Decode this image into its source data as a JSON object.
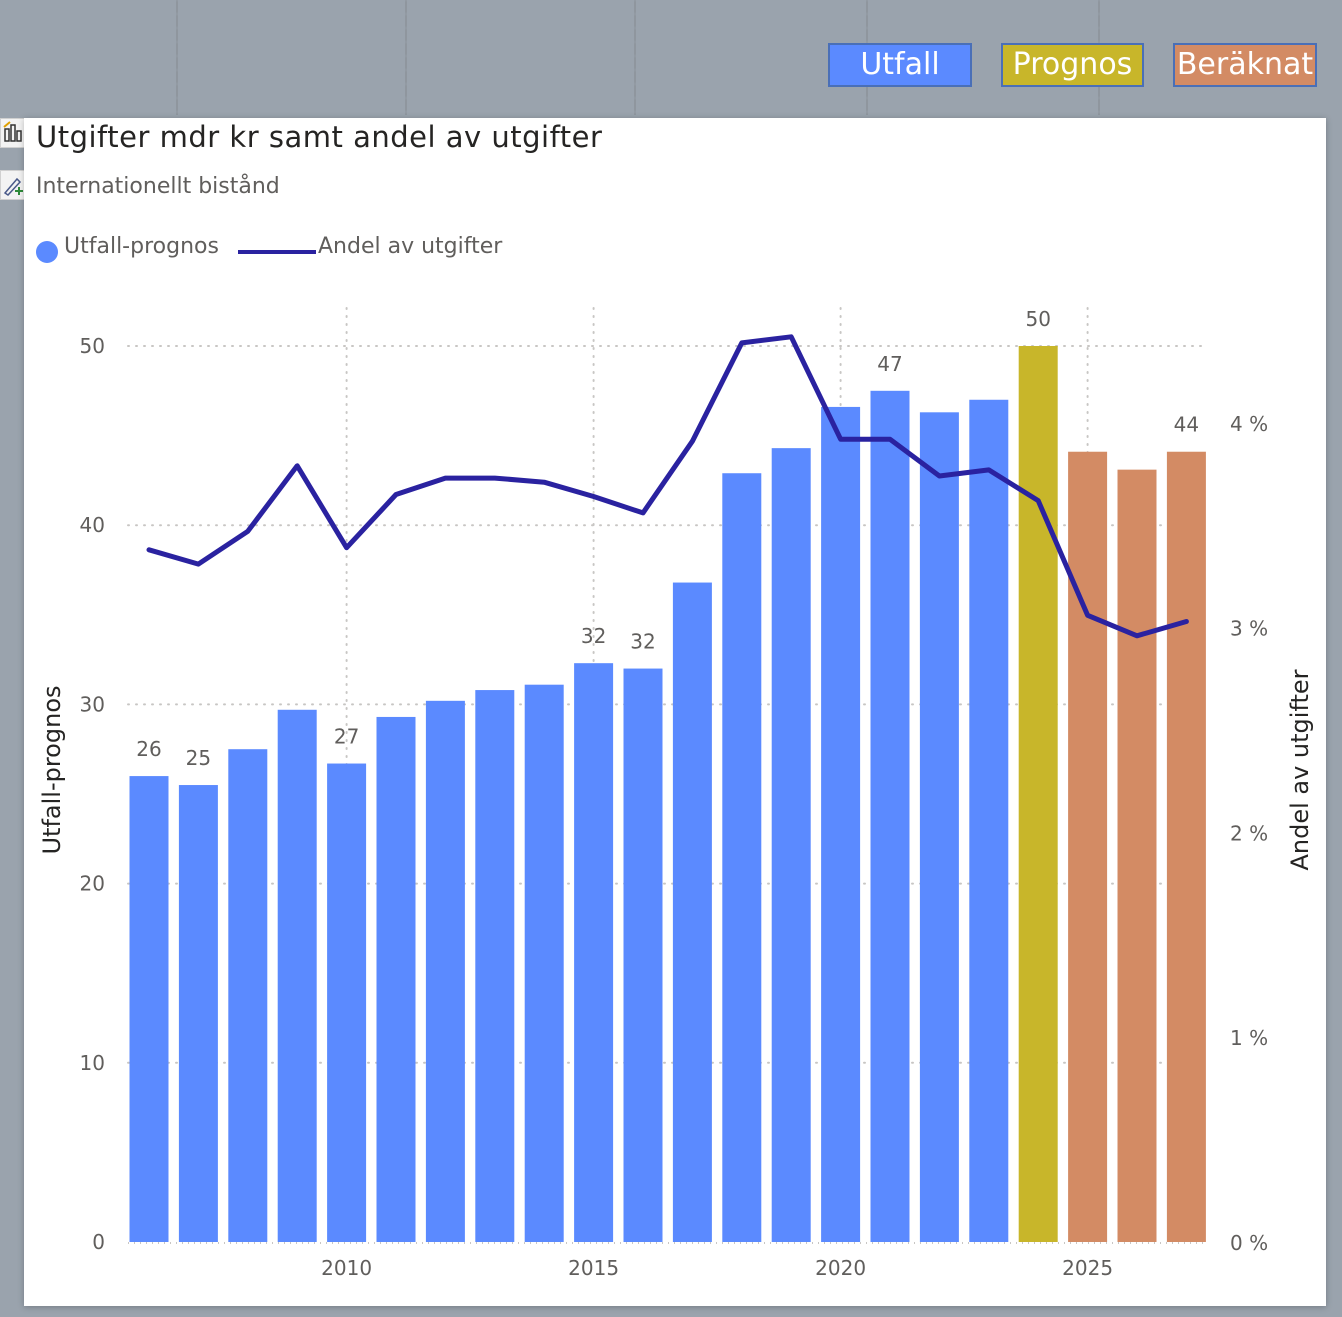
{
  "legend_buttons": [
    {
      "label": "Utfall",
      "color": "#5b8aff"
    },
    {
      "label": "Prognos",
      "color": "#c8b62a"
    },
    {
      "label": "Beräknat",
      "color": "#d38b64"
    }
  ],
  "visual": {
    "title": "Utgifter mdr kr samt andel av utgifter",
    "subtitle": "Internationellt bistånd",
    "legend": [
      {
        "label": "Utfall-prognos",
        "marker": "dot",
        "color": "#5b8aff"
      },
      {
        "label": "Andel av utgifter",
        "marker": "line",
        "color": "#2a22a0"
      }
    ],
    "icons": [
      "chart-icon",
      "edit-icon"
    ]
  },
  "chart_data": {
    "type": "bar",
    "categories": [
      2006,
      2007,
      2008,
      2009,
      2010,
      2011,
      2012,
      2013,
      2014,
      2015,
      2016,
      2017,
      2018,
      2019,
      2020,
      2021,
      2022,
      2023,
      2024,
      2025,
      2026,
      2027
    ],
    "values": [
      26.0,
      25.5,
      27.5,
      29.7,
      26.7,
      29.3,
      30.2,
      30.8,
      31.1,
      32.3,
      32.0,
      36.8,
      42.9,
      44.3,
      46.6,
      47.5,
      46.3,
      47.0,
      50.0,
      44.1,
      43.1,
      44.1
    ],
    "bar_phase": [
      "Utfall",
      "Utfall",
      "Utfall",
      "Utfall",
      "Utfall",
      "Utfall",
      "Utfall",
      "Utfall",
      "Utfall",
      "Utfall",
      "Utfall",
      "Utfall",
      "Utfall",
      "Utfall",
      "Utfall",
      "Utfall",
      "Utfall",
      "Utfall",
      "Prognos",
      "Beräknat",
      "Beräknat",
      "Beräknat"
    ],
    "phase_colors": {
      "Utfall": "#5b8aff",
      "Prognos": "#c8b62a",
      "Beräknat": "#d38b64"
    },
    "data_labels": {
      "2006": "26",
      "2007": "25",
      "2010": "27",
      "2015": "32",
      "2016": "32",
      "2021": "47",
      "2024": "50",
      "2027": "44"
    },
    "line_series": {
      "name": "Andel av utgifter",
      "color": "#2a22a0",
      "values": [
        3.38,
        3.31,
        3.47,
        3.79,
        3.39,
        3.65,
        3.73,
        3.73,
        3.71,
        3.64,
        3.56,
        3.91,
        4.39,
        4.42,
        3.92,
        3.92,
        3.74,
        3.77,
        3.62,
        3.06,
        2.96,
        3.03
      ]
    },
    "xlabel": "",
    "ylabel": "Utfall-prognos",
    "y2label": "Andel av utgifter",
    "ylim": [
      0,
      50
    ],
    "y2lim": [
      0,
      4.375
    ],
    "yticks": [
      "0",
      "10",
      "20",
      "30",
      "40",
      "50"
    ],
    "yticks_values": [
      0,
      10,
      20,
      30,
      40,
      50
    ],
    "y2ticks": [
      "0 %",
      "1 %",
      "2 %",
      "3 %",
      "4 %"
    ],
    "y2ticks_values": [
      0,
      1,
      2,
      3,
      4
    ],
    "xticks": [
      "2010",
      "2015",
      "2020",
      "2025"
    ],
    "xticks_values": [
      2010,
      2015,
      2020,
      2025
    ],
    "grid": true
  }
}
